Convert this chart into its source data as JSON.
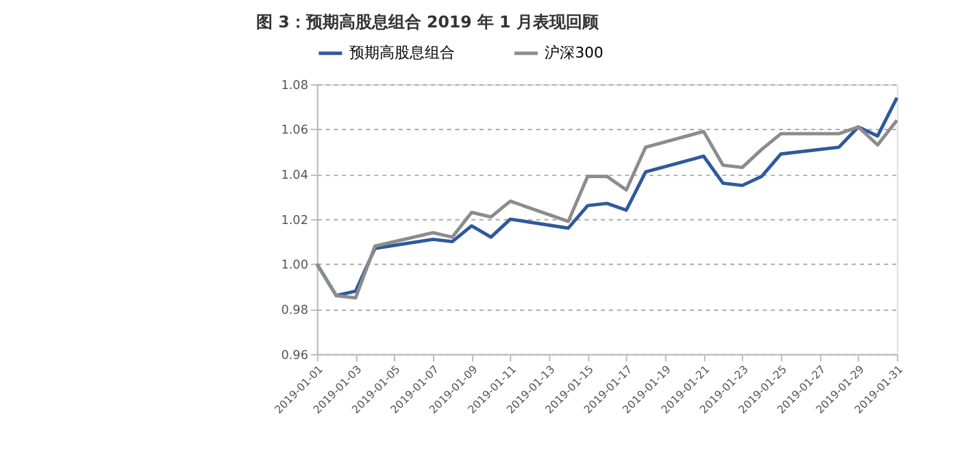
{
  "chart_data": {
    "type": "line",
    "title": "图 3：预期高股息组合 2019 年 1 月表现回顾",
    "x": [
      "2019-01-01",
      "2019-01-02",
      "2019-01-03",
      "2019-01-04",
      "2019-01-07",
      "2019-01-08",
      "2019-01-09",
      "2019-01-10",
      "2019-01-11",
      "2019-01-14",
      "2019-01-15",
      "2019-01-16",
      "2019-01-17",
      "2019-01-18",
      "2019-01-21",
      "2019-01-22",
      "2019-01-23",
      "2019-01-24",
      "2019-01-25",
      "2019-01-28",
      "2019-01-29",
      "2019-01-30",
      "2019-01-31"
    ],
    "series": [
      {
        "name": "预期高股息组合",
        "color": "#2e5a9c",
        "values": [
          1.0,
          0.986,
          0.988,
          1.007,
          1.011,
          1.01,
          1.017,
          1.012,
          1.02,
          1.016,
          1.026,
          1.027,
          1.024,
          1.041,
          1.048,
          1.036,
          1.035,
          1.039,
          1.049,
          1.052,
          1.061,
          1.057,
          1.074
        ]
      },
      {
        "name": "沪深300",
        "color": "#8c8c8c",
        "values": [
          1.0,
          0.986,
          0.985,
          1.008,
          1.014,
          1.012,
          1.023,
          1.021,
          1.028,
          1.019,
          1.039,
          1.039,
          1.033,
          1.052,
          1.059,
          1.044,
          1.043,
          1.051,
          1.058,
          1.058,
          1.061,
          1.053,
          1.064
        ]
      }
    ],
    "xlim": [
      "2019-01-01",
      "2019-01-31"
    ],
    "xticks": [
      "2019-01-01",
      "2019-01-03",
      "2019-01-05",
      "2019-01-07",
      "2019-01-09",
      "2019-01-11",
      "2019-01-13",
      "2019-01-15",
      "2019-01-17",
      "2019-01-19",
      "2019-01-21",
      "2019-01-23",
      "2019-01-25",
      "2019-01-27",
      "2019-01-29",
      "2019-01-31"
    ],
    "ylim": [
      0.96,
      1.08
    ],
    "yticks": [
      0.96,
      0.98,
      {
        "value": 1.0,
        "label": "1.00"
      },
      1.02,
      1.04,
      1.06,
      1.08
    ],
    "grid": "y",
    "legend": "top",
    "marker": "none",
    "line_style": "solid"
  }
}
